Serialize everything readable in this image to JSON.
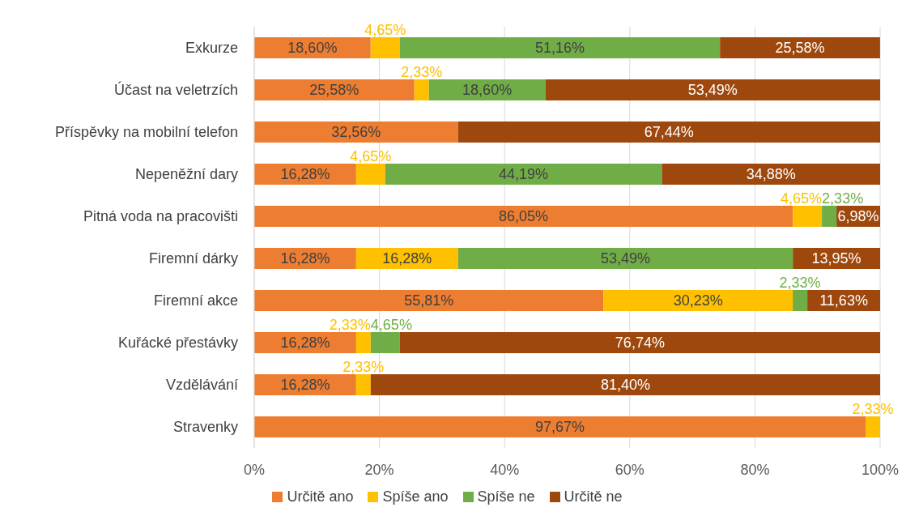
{
  "chart_data": {
    "type": "bar",
    "orientation": "horizontal",
    "stacked": true,
    "categories": [
      "Exkurze",
      "Účast na veletrzích",
      "Příspěvky na mobilní telefon",
      "Nepeněžní dary",
      "Pitná voda na pracovišti",
      "Firemní dárky",
      "Firemní akce",
      "Kuřácké přestávky",
      "Vzdělávání",
      "Stravenky"
    ],
    "series": [
      {
        "name": "Určitě ano",
        "color": "#ed7d31",
        "values": [
          18.6,
          25.58,
          32.56,
          16.28,
          86.05,
          16.28,
          55.81,
          16.28,
          16.28,
          97.67
        ],
        "value_labels": [
          "18,60%",
          "25,58%",
          "32,56%",
          "16,28%",
          "86,05%",
          "16,28%",
          "55,81%",
          "16,28%",
          "16,28%",
          "97,67%"
        ]
      },
      {
        "name": "Spíše ano",
        "color": "#ffc000",
        "values": [
          4.65,
          2.33,
          null,
          4.65,
          4.65,
          16.28,
          30.23,
          2.33,
          2.33,
          2.33
        ],
        "value_labels": [
          "4,65%",
          "2,33%",
          null,
          "4,65%",
          "4,65%",
          "16,28%",
          "30,23%",
          "2,33%",
          "2,33%",
          "2,33%"
        ]
      },
      {
        "name": "Spíše ne",
        "color": "#70ad47",
        "values": [
          51.16,
          18.6,
          null,
          44.19,
          2.33,
          53.49,
          2.33,
          4.65,
          null,
          null
        ],
        "value_labels": [
          "51,16%",
          "18,60%",
          null,
          "44,19%",
          "2,33%",
          "53,49%",
          "2,33%",
          "4,65%",
          null,
          null
        ]
      },
      {
        "name": "Určitě ne",
        "color": "#9e480e",
        "values": [
          25.58,
          53.49,
          67.44,
          34.88,
          6.98,
          13.95,
          11.63,
          76.74,
          81.4,
          null
        ],
        "value_labels": [
          "25,58%",
          "53,49%",
          "67,44%",
          "34,88%",
          "6,98%",
          "13,95%",
          "11,63%",
          "76,74%",
          "81,40%",
          null
        ]
      }
    ],
    "xlim": [
      0,
      100
    ],
    "xticks": [
      {
        "value": 0,
        "label": "0%"
      },
      {
        "value": 20,
        "label": "20%"
      },
      {
        "value": 40,
        "label": "40%"
      },
      {
        "value": 60,
        "label": "60%"
      },
      {
        "value": 80,
        "label": "80%"
      },
      {
        "value": 100,
        "label": "100%"
      }
    ],
    "grid": "x",
    "legend": "bottom"
  }
}
